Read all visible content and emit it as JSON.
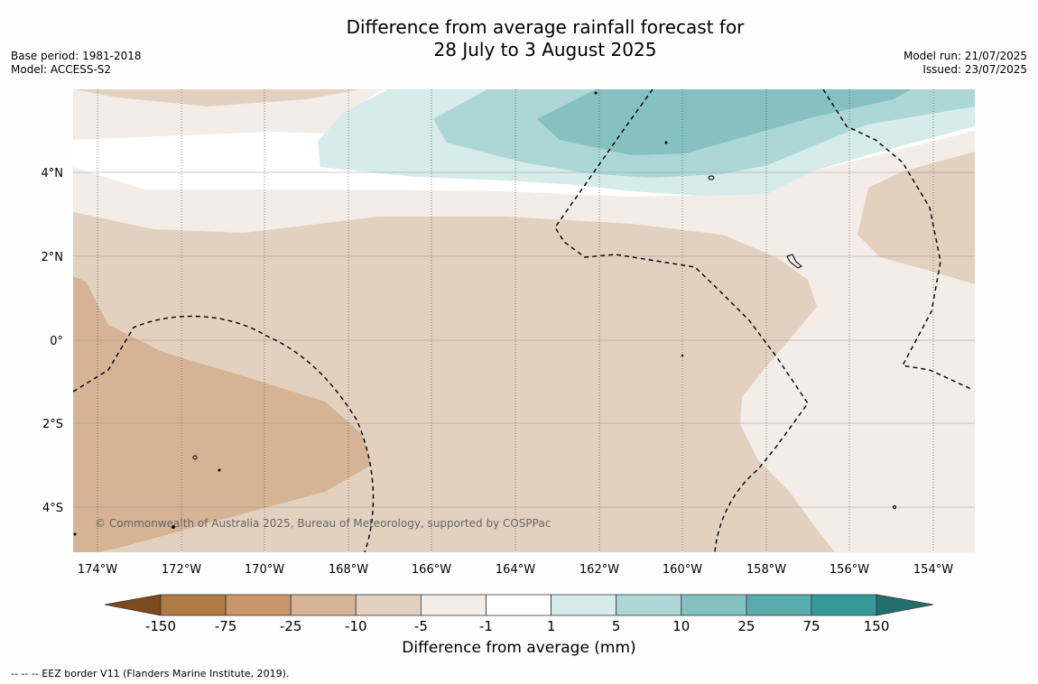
{
  "title_line1": "Difference from average rainfall forecast for",
  "title_line2": "28 July to 3 August 2025",
  "base_period": "Base period: 1981-2018",
  "model": "Model: ACCESS-S2",
  "model_run": "Model run: 21/07/2025",
  "issued": "Issued: 23/07/2025",
  "copyright": "© Commonwealth of Australia 2025, Bureau of Meteorology, supported by COSPPac",
  "lon_labels": [
    "174°W",
    "172°W",
    "170°W",
    "168°W",
    "166°W",
    "164°W",
    "162°W",
    "160°W",
    "158°W",
    "156°W",
    "154°W"
  ],
  "lat_labels": [
    "4°N",
    "2°N",
    "0°",
    "2°S",
    "4°S"
  ],
  "colorbar": {
    "label": "Difference from average (mm)",
    "ticks": [
      "-150",
      "-75",
      "-25",
      "-10",
      "-5",
      "-1",
      "1",
      "5",
      "10",
      "25",
      "75",
      "150"
    ],
    "colors": [
      "#7d4a1e",
      "#b07a45",
      "#c9966c",
      "#d5b394",
      "#e3d1c0",
      "#f4ece7",
      "#ffffff",
      "#d6ebea",
      "#acd7d6",
      "#84c1c0",
      "#5aabab",
      "#339a99",
      "#236f6e"
    ]
  },
  "footnote": "--  --  -- EEZ border V11 (Flanders Marine Institute, 2019)."
}
